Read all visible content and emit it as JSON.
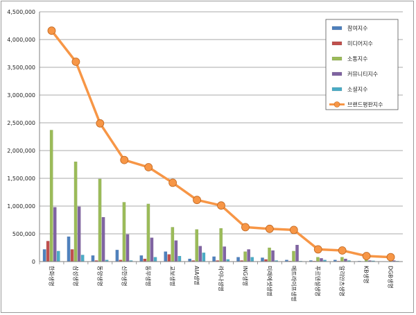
{
  "chart_data": {
    "type": "bar",
    "title": "",
    "xlabel": "",
    "ylabel": "",
    "ylim": [
      0,
      4500000
    ],
    "yticks": [
      0,
      500000,
      1000000,
      1500000,
      2000000,
      2500000,
      3000000,
      3500000,
      4000000,
      4500000
    ],
    "ytick_labels": [
      "0",
      "500,000",
      "1,000,000",
      "1,500,000",
      "2,000,000",
      "2,500,000",
      "3,000,000",
      "3,500,000",
      "4,000,000",
      "4,500,000"
    ],
    "grid": true,
    "legend_position": "top-right",
    "categories": [
      "한화생명",
      "삼성생명",
      "동양생명",
      "신한생명",
      "동부생명",
      "교보생명",
      "AIA생명",
      "라이나생명",
      "ING생명",
      "미래에셋생명",
      "메트라이프생명",
      "푸르덴셜생명",
      "알리안츠생명",
      "KB생명",
      "DGB생명"
    ],
    "series": [
      {
        "name": "참여지수",
        "type": "bar",
        "color": "#4f81bd",
        "values": [
          220000,
          450000,
          110000,
          210000,
          110000,
          180000,
          50000,
          90000,
          80000,
          70000,
          30000,
          20000,
          30000,
          10000,
          5000
        ]
      },
      {
        "name": "미디어지수",
        "type": "bar",
        "color": "#c0504d",
        "values": [
          370000,
          220000,
          20000,
          30000,
          50000,
          130000,
          20000,
          20000,
          20000,
          40000,
          10000,
          10000,
          10000,
          5000,
          3000
        ]
      },
      {
        "name": "소통지수",
        "type": "bar",
        "color": "#9bbb59",
        "values": [
          2370000,
          1800000,
          1490000,
          1070000,
          1040000,
          620000,
          580000,
          600000,
          180000,
          250000,
          190000,
          80000,
          80000,
          40000,
          30000
        ]
      },
      {
        "name": "커뮤니티지수",
        "type": "bar",
        "color": "#8064a2",
        "values": [
          980000,
          990000,
          800000,
          490000,
          430000,
          380000,
          280000,
          270000,
          220000,
          200000,
          300000,
          60000,
          50000,
          20000,
          20000
        ]
      },
      {
        "name": "소셜지수",
        "type": "bar",
        "color": "#4bacc6",
        "values": [
          190000,
          120000,
          30000,
          20000,
          80000,
          100000,
          160000,
          40000,
          80000,
          20000,
          10000,
          30000,
          20000,
          15000,
          10000
        ]
      },
      {
        "name": "브랜드평판지수",
        "type": "line",
        "color": "#f79646",
        "values": [
          4160000,
          3600000,
          2490000,
          1830000,
          1700000,
          1420000,
          1110000,
          1010000,
          620000,
          590000,
          570000,
          220000,
          200000,
          100000,
          80000
        ]
      }
    ]
  }
}
